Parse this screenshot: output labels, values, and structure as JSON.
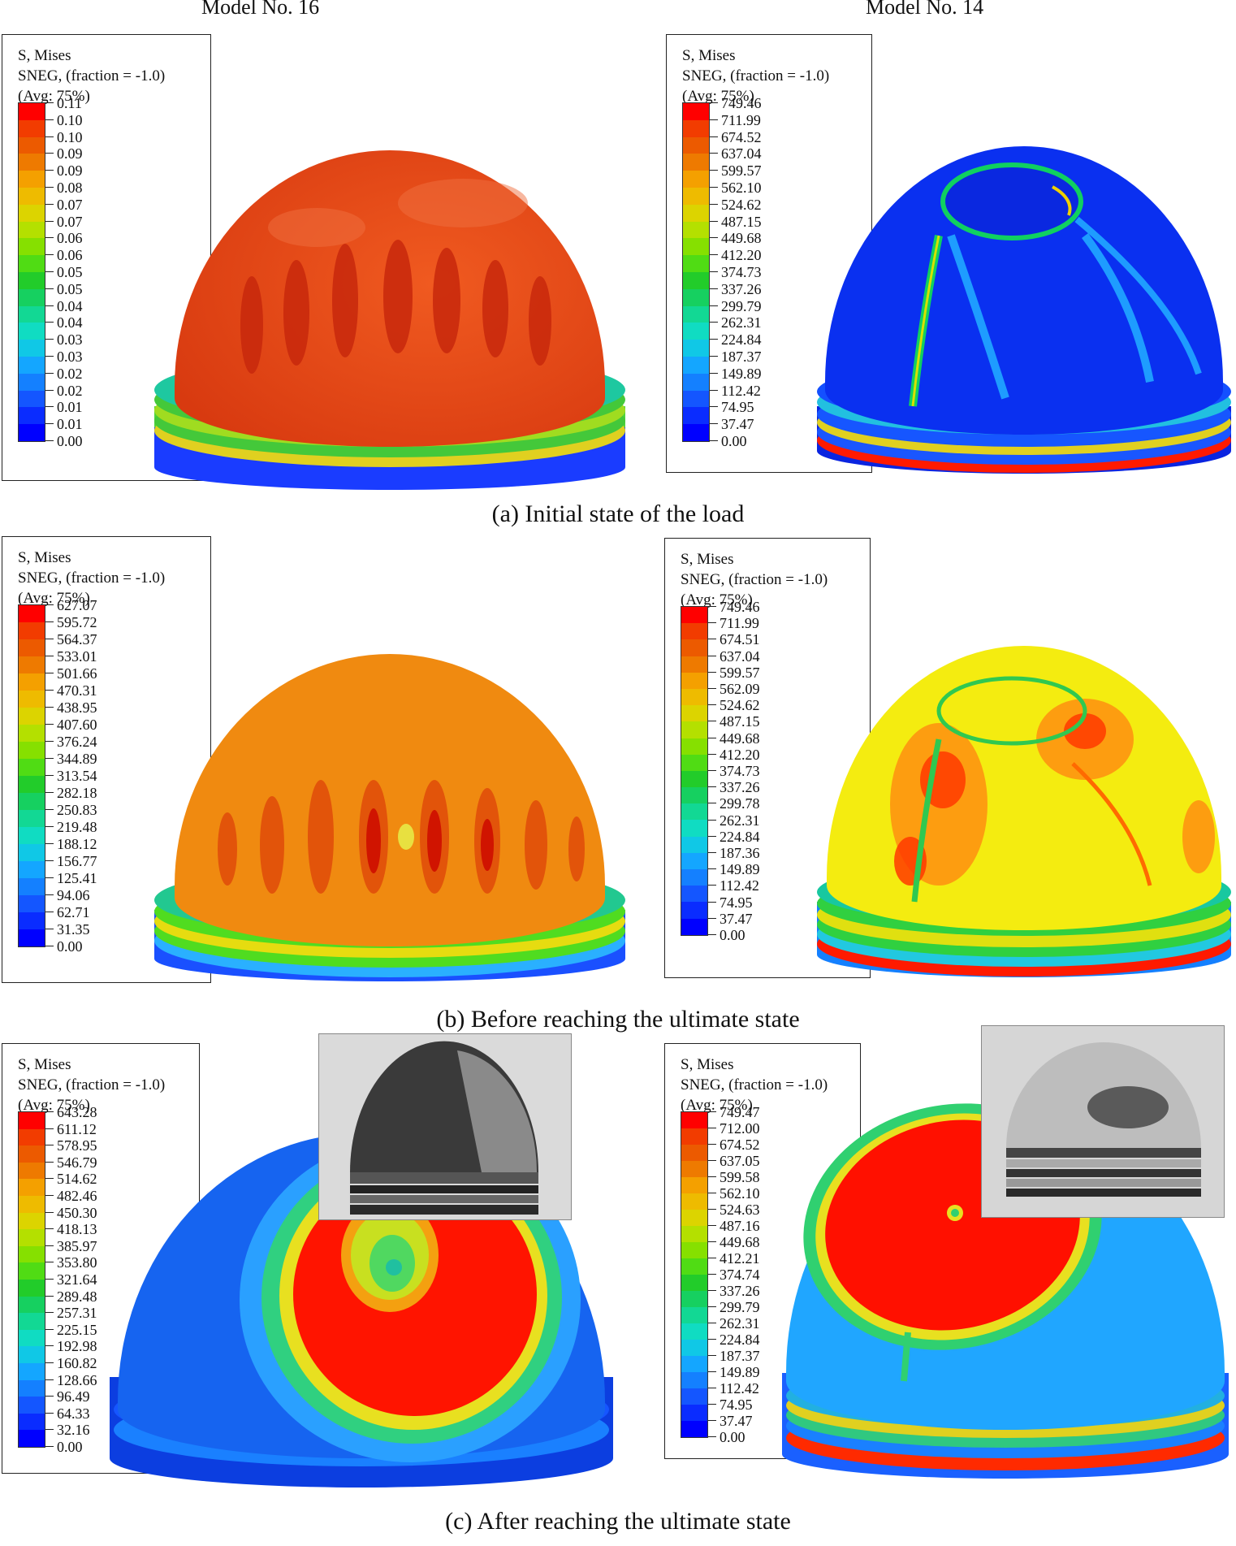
{
  "columns": {
    "left_title": "Model No. 16",
    "right_title": "Model No. 14"
  },
  "legend_header": {
    "line1": "S, Mises",
    "line2": "SNEG, (fraction = -1.0)",
    "line3": "(Avg: 75%)"
  },
  "captions": {
    "a": "(a) Initial state of the load",
    "b": "(b) Before reaching the ultimate state",
    "c": "(c) After reaching the ultimate state"
  },
  "legend_colors": [
    "#ff0000",
    "#f23c00",
    "#ec5a00",
    "#ee7a00",
    "#f4a000",
    "#eebb00",
    "#dcd400",
    "#b4e000",
    "#86e000",
    "#50dc14",
    "#22cc2a",
    "#16d060",
    "#12d894",
    "#10dcc2",
    "#10c8e6",
    "#14a6ff",
    "#1480ff",
    "#1456ff",
    "#0a2cff",
    "#0000ff"
  ],
  "legends": {
    "a_left": [
      "0.11",
      "0.10",
      "0.10",
      "0.09",
      "0.09",
      "0.08",
      "0.07",
      "0.07",
      "0.06",
      "0.06",
      "0.05",
      "0.05",
      "0.04",
      "0.04",
      "0.03",
      "0.03",
      "0.02",
      "0.02",
      "0.01",
      "0.01",
      "0.00"
    ],
    "a_right": [
      "749.46",
      "711.99",
      "674.52",
      "637.04",
      "599.57",
      "562.10",
      "524.62",
      "487.15",
      "449.68",
      "412.20",
      "374.73",
      "337.26",
      "299.79",
      "262.31",
      "224.84",
      "187.37",
      "149.89",
      "112.42",
      "74.95",
      "37.47",
      "0.00"
    ],
    "b_left": [
      "627.07",
      "595.72",
      "564.37",
      "533.01",
      "501.66",
      "470.31",
      "438.95",
      "407.60",
      "376.24",
      "344.89",
      "313.54",
      "282.18",
      "250.83",
      "219.48",
      "188.12",
      "156.77",
      "125.41",
      "94.06",
      "62.71",
      "31.35",
      "0.00"
    ],
    "b_right": [
      "749.46",
      "711.99",
      "674.51",
      "637.04",
      "599.57",
      "562.09",
      "524.62",
      "487.15",
      "449.68",
      "412.20",
      "374.73",
      "337.26",
      "299.78",
      "262.31",
      "224.84",
      "187.36",
      "149.89",
      "112.42",
      "74.95",
      "37.47",
      "0.00"
    ],
    "c_left": [
      "643.28",
      "611.12",
      "578.95",
      "546.79",
      "514.62",
      "482.46",
      "450.30",
      "418.13",
      "385.97",
      "353.80",
      "321.64",
      "289.48",
      "257.31",
      "225.15",
      "192.98",
      "160.82",
      "128.66",
      "96.49",
      "64.33",
      "32.16",
      "0.00"
    ],
    "c_right": [
      "749.47",
      "712.00",
      "674.52",
      "637.05",
      "599.58",
      "562.10",
      "524.63",
      "487.16",
      "449.68",
      "412.21",
      "374.74",
      "337.26",
      "299.79",
      "262.31",
      "224.84",
      "187.37",
      "149.89",
      "112.42",
      "74.95",
      "37.47",
      "0.00"
    ]
  },
  "model_colors": {
    "a_left": {
      "dome": "#e8401a",
      "stripe": "#d8320e",
      "ring1": "#4cd43a",
      "ring2": "#e0d020",
      "base": "#1a3cff"
    },
    "a_right": {
      "dome": "#0a30f0",
      "stripe": "#10d060",
      "ring1": "#1656ff",
      "ring2": "#ff1a00",
      "base": "#0a24e0"
    },
    "b_left": {
      "dome": "#f08a10",
      "stripe": "#e2540a",
      "ring1": "#50dc20",
      "ring2": "#e6dc10",
      "base": "#1a50ff"
    },
    "b_right": {
      "dome": "#f4ec10",
      "stripe": "#ff6a00",
      "ring1": "#30d040",
      "ring2": "#ff1a00",
      "base": "#1480ff"
    },
    "c_left": {
      "dome": "#1664f0",
      "stripe": "#ff1400",
      "ring1": "#1a80ff",
      "ring2": "#2aa0ff",
      "base": "#0c3ee0"
    },
    "c_right": {
      "dome": "#20a6ff",
      "stripe": "#ff1000",
      "ring1": "#30c880",
      "ring2": "#ff2a00",
      "base": "#1a60ff"
    }
  }
}
